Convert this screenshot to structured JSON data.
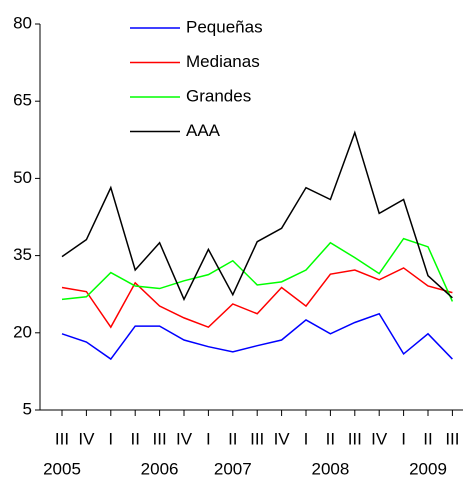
{
  "chart_data": {
    "type": "line",
    "categories": [
      "III",
      "IV",
      "I",
      "II",
      "III",
      "IV",
      "I",
      "II",
      "III",
      "IV",
      "I",
      "II",
      "III",
      "IV",
      "I",
      "II",
      "III"
    ],
    "years": [
      "2005",
      null,
      null,
      null,
      "2006",
      null,
      null,
      "2007",
      null,
      null,
      null,
      "2008",
      null,
      null,
      null,
      "2009",
      null
    ],
    "series": [
      {
        "name": "Pequeñas",
        "color": "#0000ff",
        "values": [
          19.8,
          18.2,
          14.9,
          21.3,
          21.3,
          18.6,
          17.3,
          16.3,
          17.5,
          18.6,
          22.5,
          19.8,
          22,
          23.7,
          15.9,
          19.8,
          14.9
        ]
      },
      {
        "name": "Medianas",
        "color": "#ff0000",
        "values": [
          28.8,
          28,
          21.1,
          29.7,
          25.2,
          22.9,
          21.1,
          25.6,
          23.7,
          28.8,
          25.2,
          31.4,
          32.2,
          30.3,
          32.6,
          29.1,
          27.8
        ]
      },
      {
        "name": "Grandes",
        "color": "#00ff00",
        "values": [
          26.5,
          27,
          31.7,
          29.1,
          28.6,
          30.1,
          31.3,
          34,
          29.3,
          29.9,
          32.2,
          37.5,
          34.6,
          31.5,
          38.3,
          36.7,
          26.1
        ]
      },
      {
        "name": "AAA",
        "color": "#000000",
        "values": [
          34.8,
          38.1,
          48.2,
          32.2,
          37.5,
          26.5,
          36.2,
          27.4,
          37.7,
          40.3,
          48.2,
          45.9,
          58.9,
          43.2,
          45.9,
          31.1,
          26.8
        ]
      }
    ],
    "ylim": [
      5,
      80
    ],
    "yticks": [
      5,
      20,
      35,
      50,
      65,
      80
    ],
    "legend": "top"
  }
}
